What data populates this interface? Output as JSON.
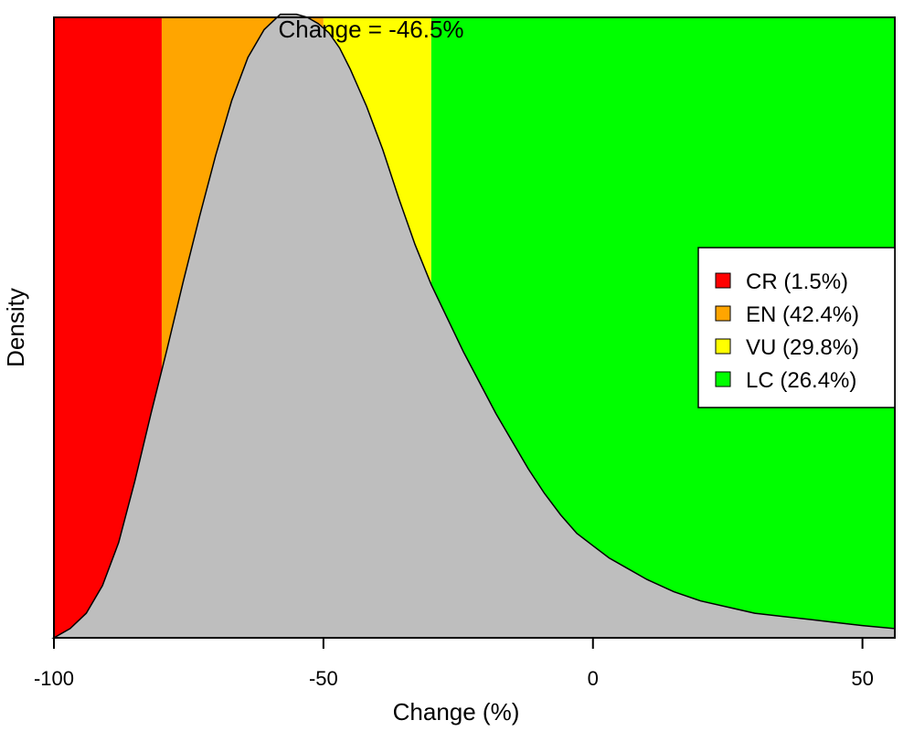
{
  "chart_data": {
    "type": "area",
    "xlabel": "Change (%)",
    "ylabel": "Density",
    "xlim": [
      -100,
      56
    ],
    "ylim": [
      0,
      0.0202
    ],
    "x_ticks": [
      -100,
      -50,
      0,
      50
    ],
    "x_tick_labels": [
      "-100",
      "-50",
      "0",
      "50"
    ],
    "annotation": "Change = -46.5%",
    "bands": [
      {
        "label": "CR (1.5%)",
        "from": -100,
        "to": -80,
        "color": "#ff0000"
      },
      {
        "label": "EN (42.4%)",
        "from": -80,
        "to": -50,
        "color": "#ffa500"
      },
      {
        "label": "VU (29.8%)",
        "from": -50,
        "to": -30,
        "color": "#ffff00"
      },
      {
        "label": "LC (26.4%)",
        "from": -30,
        "to": 56,
        "color": "#00ff00"
      }
    ],
    "density_color": "#bebebe",
    "density": {
      "x": [
        -100,
        -97,
        -94,
        -91,
        -88,
        -85,
        -82,
        -79,
        -76,
        -73,
        -70,
        -67,
        -64,
        -61,
        -58,
        -55,
        -53,
        -51,
        -49,
        -47,
        -45,
        -42,
        -39,
        -36,
        -33,
        -30,
        -27,
        -24,
        -21,
        -18,
        -15,
        -12,
        -9,
        -6,
        -3,
        0,
        3,
        6,
        10,
        15,
        20,
        25,
        30,
        35,
        40,
        45,
        50,
        56
      ],
      "y": [
        0.0,
        0.0003,
        0.0008,
        0.0017,
        0.0031,
        0.0051,
        0.0073,
        0.0094,
        0.0116,
        0.0137,
        0.0157,
        0.0175,
        0.0189,
        0.0198,
        0.0203,
        0.0203,
        0.0202,
        0.02,
        0.0197,
        0.0192,
        0.0185,
        0.0173,
        0.0159,
        0.0143,
        0.0128,
        0.0115,
        0.0104,
        0.0093,
        0.0083,
        0.0073,
        0.0064,
        0.0055,
        0.0047,
        0.004,
        0.0034,
        0.003,
        0.0026,
        0.0023,
        0.0019,
        0.0015,
        0.0012,
        0.001,
        0.0008,
        0.0007,
        0.0006,
        0.0005,
        0.0004,
        0.0003
      ]
    },
    "grid": false,
    "legend_position": "right"
  }
}
